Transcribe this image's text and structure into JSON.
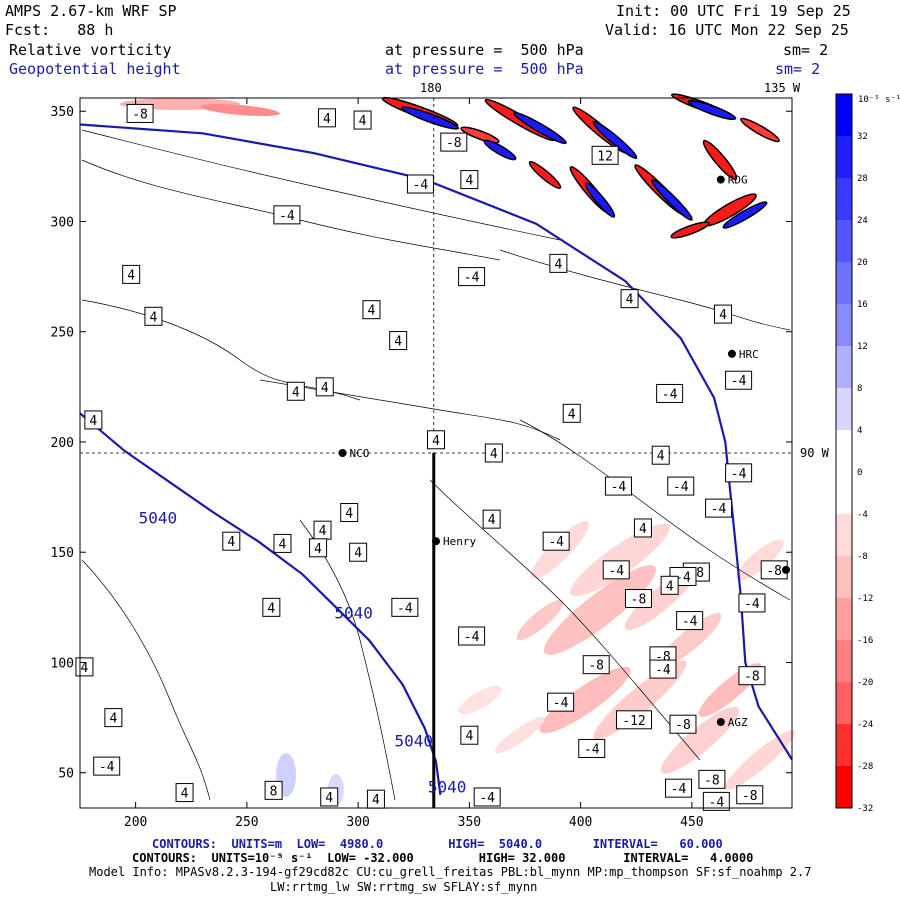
{
  "header": {
    "model": "AMPS 2.67-km WRF SP",
    "fcst": "Fcst:   88 h",
    "init": "Init: 00 UTC Fri 19 Sep 25",
    "valid": "Valid: 16 UTC Mon 22 Sep 25",
    "field1": "Relative vorticity",
    "field1_level": "at pressure =  500 hPa",
    "field1_sm": "sm= 2",
    "field2": "Geopotential height",
    "field2_level": "at pressure =  500 hPa",
    "field2_sm": "sm= 2"
  },
  "map_labels": {
    "lon_180": "180",
    "lon_135w": "135 W",
    "lon_90w": "90 W"
  },
  "colors": {
    "height_contour": "#1a1aa8",
    "frame": "#000000"
  },
  "colorbar": {
    "unit_label": "10⁻⁵ s⁻¹",
    "ticks": [
      "32",
      "28",
      "24",
      "20",
      "16",
      "12",
      "8",
      "4",
      "0",
      "-4",
      "-8",
      "-12",
      "-16",
      "-20",
      "-24",
      "-28",
      "-32"
    ],
    "colors": [
      "#0000ff",
      "#2020ff",
      "#3a3aff",
      "#5555ff",
      "#7070ff",
      "#8a8aff",
      "#b0b0ff",
      "#d6d6ff",
      "#ffffff",
      "#ffffff",
      "#ffdcdc",
      "#ffc0c0",
      "#ffa0a0",
      "#ff8080",
      "#ff6060",
      "#ff3030",
      "#ff0000"
    ]
  },
  "stations": [
    {
      "name": "NCO",
      "x": 293,
      "y": 195
    },
    {
      "name": "Henry",
      "x": 335,
      "y": 155
    },
    {
      "name": "HRC",
      "x": 468,
      "y": 240
    },
    {
      "name": "AGZ",
      "x": 463,
      "y": 73
    },
    {
      "name": "RDG",
      "x": 463,
      "y": 319
    }
  ],
  "footer": {
    "line1_label": "CONTOURS:  UNITS=m  LOW=  4980.0         HIGH=  5040.0       INTERVAL=   60.000",
    "line2_label": "CONTOURS:  UNITS=10⁻⁵ s⁻¹  LOW= -32.000         HIGH= 32.000        INTERVAL=   4.0000",
    "line3": "Model Info: MPASv8.2.3-194-gf29cd82c CU:cu_grell_freitas PBL:bl_mynn MP:mp_thompson SF:sf_noahmp 2.7",
    "line4": "LW:rrtmg_lw SW:rrtmg_sw SFLAY:sf_mynn"
  },
  "chart_data": {
    "type": "contour_map",
    "title": "Relative vorticity / Geopotential height at 500 hPa",
    "xlabel": "",
    "ylabel": "",
    "xlim": [
      175,
      495
    ],
    "ylim": [
      34,
      356
    ],
    "xticks": [
      200,
      250,
      300,
      350,
      400,
      450
    ],
    "yticks": [
      50,
      100,
      150,
      200,
      250,
      300,
      350
    ],
    "height_contours": {
      "units": "m",
      "low": 4980.0,
      "high": 5040.0,
      "interval": 60.0,
      "lines": [
        {
          "value": "5040",
          "points": [
            [
              175,
              344
            ],
            [
              230,
              340
            ],
            [
              280,
              331
            ],
            [
              330,
              319
            ],
            [
              380,
              299
            ],
            [
              420,
              273
            ],
            [
              445,
              247
            ],
            [
              460,
              220
            ],
            [
              465,
              200
            ],
            [
              467,
              180
            ],
            [
              470,
              150
            ],
            [
              472,
              130
            ],
            [
              474,
              100
            ],
            [
              480,
              80
            ],
            [
              495,
              56
            ]
          ]
        },
        {
          "value": "5040",
          "points": [
            [
              175,
              213
            ],
            [
              195,
              196
            ],
            [
              215,
              182
            ],
            [
              235,
              168
            ],
            [
              255,
              155
            ],
            [
              275,
              140
            ],
            [
              290,
              125
            ],
            [
              305,
              110
            ],
            [
              320,
              90
            ],
            [
              330,
              70
            ],
            [
              335,
              55
            ],
            [
              337,
              40
            ]
          ]
        }
      ],
      "labels": [
        {
          "text": "5040",
          "x": 210,
          "y": 163
        },
        {
          "text": "5040",
          "x": 298,
          "y": 120
        },
        {
          "text": "5040",
          "x": 325,
          "y": 62
        },
        {
          "text": "5040",
          "x": 340,
          "y": 41
        }
      ]
    },
    "vorticity_contours": {
      "units": "10⁻⁵ s⁻¹",
      "low": -32.0,
      "high": 32.0,
      "interval": 4.0,
      "labels": [
        {
          "text": "-8",
          "x": 202,
          "y": 349
        },
        {
          "text": "4",
          "x": 286,
          "y": 347
        },
        {
          "text": "4",
          "x": 302,
          "y": 346
        },
        {
          "text": "-8",
          "x": 343,
          "y": 336
        },
        {
          "text": "4",
          "x": 350,
          "y": 319
        },
        {
          "text": "-4",
          "x": 328,
          "y": 317
        },
        {
          "text": "-4",
          "x": 268,
          "y": 303
        },
        {
          "text": "12",
          "x": 411,
          "y": 330
        },
        {
          "text": "4",
          "x": 198,
          "y": 276
        },
        {
          "text": "-4",
          "x": 351,
          "y": 275
        },
        {
          "text": "4",
          "x": 390,
          "y": 281
        },
        {
          "text": "4",
          "x": 422,
          "y": 265
        },
        {
          "text": "4",
          "x": 208,
          "y": 257
        },
        {
          "text": "4",
          "x": 306,
          "y": 260
        },
        {
          "text": "4",
          "x": 318,
          "y": 246
        },
        {
          "text": "4",
          "x": 464,
          "y": 258
        },
        {
          "text": "-4",
          "x": 471,
          "y": 228
        },
        {
          "text": "4",
          "x": 272,
          "y": 223
        },
        {
          "text": "4",
          "x": 285,
          "y": 225
        },
        {
          "text": "-4",
          "x": 440,
          "y": 222
        },
        {
          "text": "4",
          "x": 396,
          "y": 213
        },
        {
          "text": "4",
          "x": 181,
          "y": 210
        },
        {
          "text": "4",
          "x": 335,
          "y": 201
        },
        {
          "text": "4",
          "x": 361,
          "y": 195
        },
        {
          "text": "4",
          "x": 436,
          "y": 194
        },
        {
          "text": "-4",
          "x": 471,
          "y": 186
        },
        {
          "text": "-4",
          "x": 417,
          "y": 180
        },
        {
          "text": "-4",
          "x": 445,
          "y": 180
        },
        {
          "text": "4",
          "x": 296,
          "y": 168
        },
        {
          "text": "4",
          "x": 360,
          "y": 165
        },
        {
          "text": "4",
          "x": 284,
          "y": 160
        },
        {
          "text": "-4",
          "x": 462,
          "y": 170
        },
        {
          "text": "4",
          "x": 428,
          "y": 161
        },
        {
          "text": "-4",
          "x": 389,
          "y": 155
        },
        {
          "text": "4",
          "x": 243,
          "y": 155
        },
        {
          "text": "4",
          "x": 266,
          "y": 154
        },
        {
          "text": "4",
          "x": 282,
          "y": 152
        },
        {
          "text": "4",
          "x": 300,
          "y": 150
        },
        {
          "text": "-8",
          "x": 452,
          "y": 141
        },
        {
          "text": "-8",
          "x": 487,
          "y": 142
        },
        {
          "text": "-4",
          "x": 416,
          "y": 142
        },
        {
          "text": "-4",
          "x": 446,
          "y": 139
        },
        {
          "text": "4",
          "x": 440,
          "y": 135
        },
        {
          "text": "-4",
          "x": 321,
          "y": 125
        },
        {
          "text": "-4",
          "x": 449,
          "y": 119
        },
        {
          "text": "-4",
          "x": 477,
          "y": 127
        },
        {
          "text": "4",
          "x": 261,
          "y": 125
        },
        {
          "text": "-8",
          "x": 426,
          "y": 129
        },
        {
          "text": "-4",
          "x": 351,
          "y": 112
        },
        {
          "text": "-8",
          "x": 407,
          "y": 99
        },
        {
          "text": "-8",
          "x": 437,
          "y": 103
        },
        {
          "text": "-4",
          "x": 437,
          "y": 97
        },
        {
          "text": "4",
          "x": 177,
          "y": 98
        },
        {
          "text": "-8",
          "x": 477,
          "y": 94
        },
        {
          "text": "-4",
          "x": 391,
          "y": 82
        },
        {
          "text": "4",
          "x": 190,
          "y": 75
        },
        {
          "text": "-12",
          "x": 424,
          "y": 74
        },
        {
          "text": "-8",
          "x": 446,
          "y": 72
        },
        {
          "text": "4",
          "x": 350,
          "y": 67
        },
        {
          "text": "-4",
          "x": 187,
          "y": 53
        },
        {
          "text": "-4",
          "x": 405,
          "y": 61
        },
        {
          "text": "-8",
          "x": 459,
          "y": 47
        },
        {
          "text": "-4",
          "x": 444,
          "y": 43
        },
        {
          "text": "8",
          "x": 262,
          "y": 42
        },
        {
          "text": "4",
          "x": 222,
          "y": 41
        },
        {
          "text": "4",
          "x": 287,
          "y": 39
        },
        {
          "text": "4",
          "x": 308,
          "y": 38
        },
        {
          "text": "-4",
          "x": 358,
          "y": 39
        },
        {
          "text": "-4",
          "x": 461,
          "y": 37
        },
        {
          "text": "-8",
          "x": 476,
          "y": 40
        }
      ]
    }
  }
}
